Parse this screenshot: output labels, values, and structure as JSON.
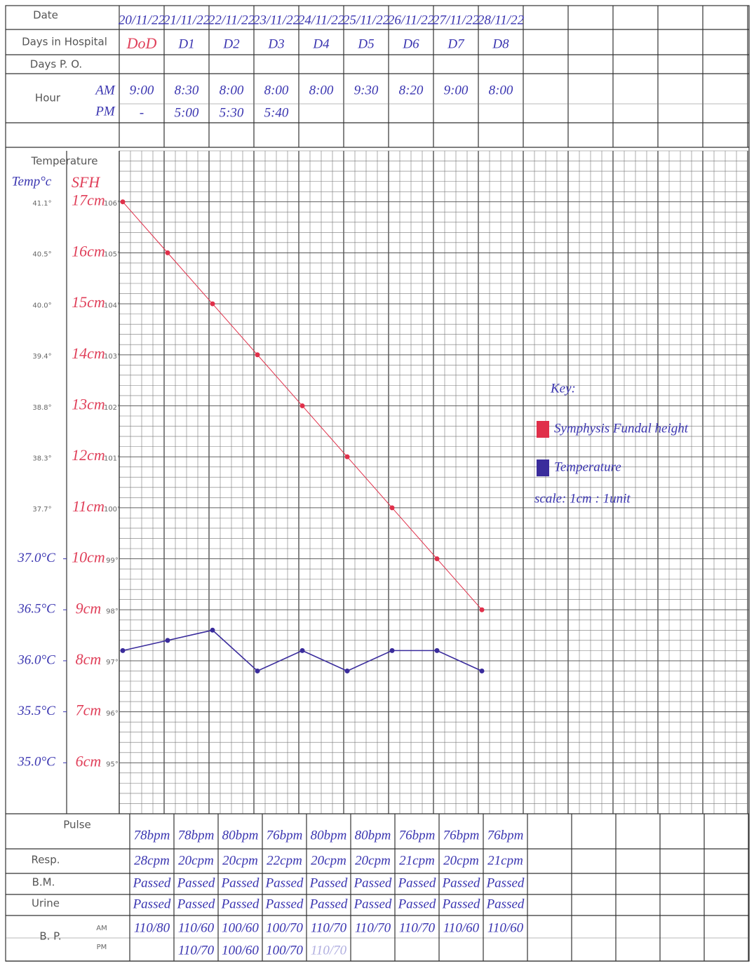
{
  "header": {
    "date_label": "Date",
    "days_label": "Days in Hospital",
    "days": [
      "DoD",
      "D1",
      "D2",
      "D3",
      "D4",
      "D5",
      "D6",
      "D7",
      "D8"
    ],
    "days_po_label": "Days P. O.",
    "hour_label": "Hour",
    "am_label": "AM",
    "pm_label": "PM",
    "hours_am": [
      "9:00",
      "8:30",
      "8:00",
      "8:00",
      "8:00",
      "9:30",
      "8:20",
      "9:00",
      "8:00"
    ],
    "hours_pm": [
      "-",
      "5:00",
      "5:30",
      "5:40"
    ]
  },
  "form": {
    "celsius": [
      "41.1°",
      "40.5°",
      "40.0°",
      "39.4°",
      "38.8°",
      "38.3°",
      "37.7°"
    ],
    "fahrenheit": [
      "106°",
      "105°",
      "104°",
      "103°",
      "102°",
      "101°",
      "100°",
      "99°",
      "98°",
      "97°",
      "96°",
      "95°"
    ]
  },
  "chart_data": {
    "type": "line",
    "title": "Temperature",
    "y_label": "SFH",
    "y2_label": "Temp°c",
    "categories": [
      "20/11/22",
      "21/11/22",
      "22/11/22",
      "23/11/22",
      "24/11/22",
      "25/11/22",
      "26/11/22",
      "27/11/22",
      "28/11/22"
    ],
    "series": [
      {
        "name": "Symphysis Fundal height",
        "color": "#e0304a",
        "values": [
          17,
          16,
          15,
          14,
          13,
          12,
          11,
          10,
          9
        ]
      },
      {
        "name": "Temperature",
        "color": "#3a2c9c",
        "axis": "y2",
        "values": [
          36.1,
          36.2,
          36.3,
          35.9,
          36.1,
          35.9,
          36.1,
          36.1,
          35.9
        ]
      }
    ],
    "ylim": [
      5,
      18
    ],
    "yticks": [
      {
        "value": 6,
        "label": "6cm"
      },
      {
        "value": 7,
        "label": "7cm"
      },
      {
        "value": 8,
        "label": "8cm"
      },
      {
        "value": 9,
        "label": "9cm"
      },
      {
        "value": 10,
        "label": "10cm"
      },
      {
        "value": 11,
        "label": "11cm"
      },
      {
        "value": 12,
        "label": "12cm"
      },
      {
        "value": 13,
        "label": "13cm"
      },
      {
        "value": 14,
        "label": "14cm"
      },
      {
        "value": 15,
        "label": "15cm"
      },
      {
        "value": 16,
        "label": "16cm"
      },
      {
        "value": 17,
        "label": "17cm"
      }
    ],
    "y2lim": [
      34.5,
      41
    ],
    "y2ticks": [
      {
        "value": 35,
        "label": "35.0°C"
      },
      {
        "value": 35.5,
        "label": "35.5°C"
      },
      {
        "value": 36,
        "label": "36.0°C"
      },
      {
        "value": 36.5,
        "label": "36.5°C"
      },
      {
        "value": 37,
        "label": "37.0°C"
      }
    ],
    "grid": true,
    "legend_title": "Key:",
    "scale_note": "scale: 1cm : 1unit"
  },
  "observations": {
    "rows": [
      {
        "label": "Pulse",
        "values": [
          "78bpm",
          "78bpm",
          "80bpm",
          "76bpm",
          "80bpm",
          "80bpm",
          "76bpm",
          "76bpm",
          "76bpm"
        ]
      },
      {
        "label": "Resp.",
        "values": [
          "28cpm",
          "20cpm",
          "20cpm",
          "22cpm",
          "20cpm",
          "20cpm",
          "21cpm",
          "20cpm",
          "21cpm"
        ]
      },
      {
        "label": "B.M.",
        "values": [
          "Passed",
          "Passed",
          "Passed",
          "Passed",
          "Passed",
          "Passed",
          "Passed",
          "Passed",
          "Passed"
        ]
      },
      {
        "label": "Urine",
        "values": [
          "Passed",
          "Passed",
          "Passed",
          "Passed",
          "Passed",
          "Passed",
          "Passed",
          "Passed",
          "Passed"
        ]
      }
    ],
    "bp": {
      "label": "B. P.",
      "am_label": "AM",
      "pm_label": "PM",
      "am": [
        "110/80",
        "110/60",
        "100/60",
        "100/70",
        "110/70",
        "110/70",
        "110/70",
        "110/60",
        "110/60"
      ],
      "pm": [
        null,
        "110/70",
        "100/60",
        "100/70",
        "110/70"
      ]
    }
  }
}
